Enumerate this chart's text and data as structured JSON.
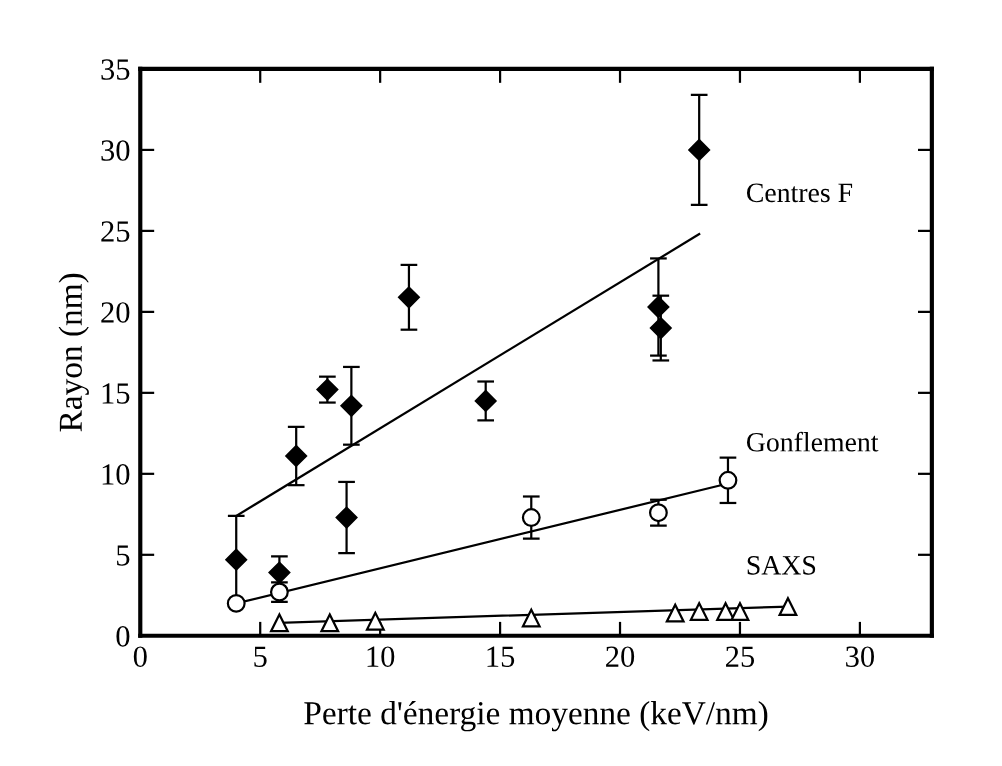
{
  "chart_data": {
    "type": "scatter",
    "xlabel": "Perte d'énergie moyenne (keV/nm)",
    "ylabel": "Rayon (nm)",
    "xlim": [
      0,
      33
    ],
    "ylim": [
      0,
      35
    ],
    "xticks": [
      0,
      5,
      10,
      15,
      20,
      25,
      30
    ],
    "yticks": [
      0,
      5,
      10,
      15,
      20,
      25,
      30,
      35
    ],
    "grid": false,
    "legend": "right",
    "series": [
      {
        "name": "Centres F",
        "marker": "diamond",
        "color": "#000000",
        "x": [
          4.0,
          5.8,
          6.5,
          7.8,
          8.6,
          8.8,
          11.2,
          14.4,
          21.6,
          21.7,
          23.3
        ],
        "values": [
          4.7,
          3.9,
          11.1,
          15.2,
          7.3,
          14.2,
          20.9,
          14.5,
          20.3,
          19.0,
          30.0
        ],
        "errors": [
          2.7,
          1.0,
          1.8,
          0.8,
          2.2,
          2.4,
          2.0,
          1.2,
          3.0,
          2.0,
          3.4
        ]
      },
      {
        "type": "line",
        "color": "#000000",
        "x": [
          4.0,
          23.3
        ],
        "values": [
          7.4,
          24.8
        ]
      },
      {
        "name": "Gonflement",
        "marker": "circle",
        "color": "#000000",
        "x": [
          4.0,
          5.8,
          16.3,
          21.6,
          24.5
        ],
        "values": [
          2.0,
          2.7,
          7.3,
          7.6,
          9.6
        ],
        "errors": [
          null,
          0.6,
          1.3,
          0.8,
          1.4
        ]
      },
      {
        "type": "line",
        "color": "#000000",
        "x": [
          4.0,
          24.5
        ],
        "values": [
          2.0,
          9.4
        ]
      },
      {
        "name": "SAXS",
        "marker": "triangle",
        "color": "#000000",
        "x": [
          5.8,
          7.9,
          9.8,
          16.3,
          22.3,
          23.3,
          24.4,
          25.0,
          27.0
        ],
        "values": [
          0.8,
          0.8,
          0.9,
          1.1,
          1.4,
          1.5,
          1.5,
          1.5,
          1.8
        ]
      },
      {
        "type": "line",
        "color": "#000000",
        "x": [
          5.8,
          27.0
        ],
        "values": [
          0.8,
          1.8
        ]
      }
    ]
  }
}
